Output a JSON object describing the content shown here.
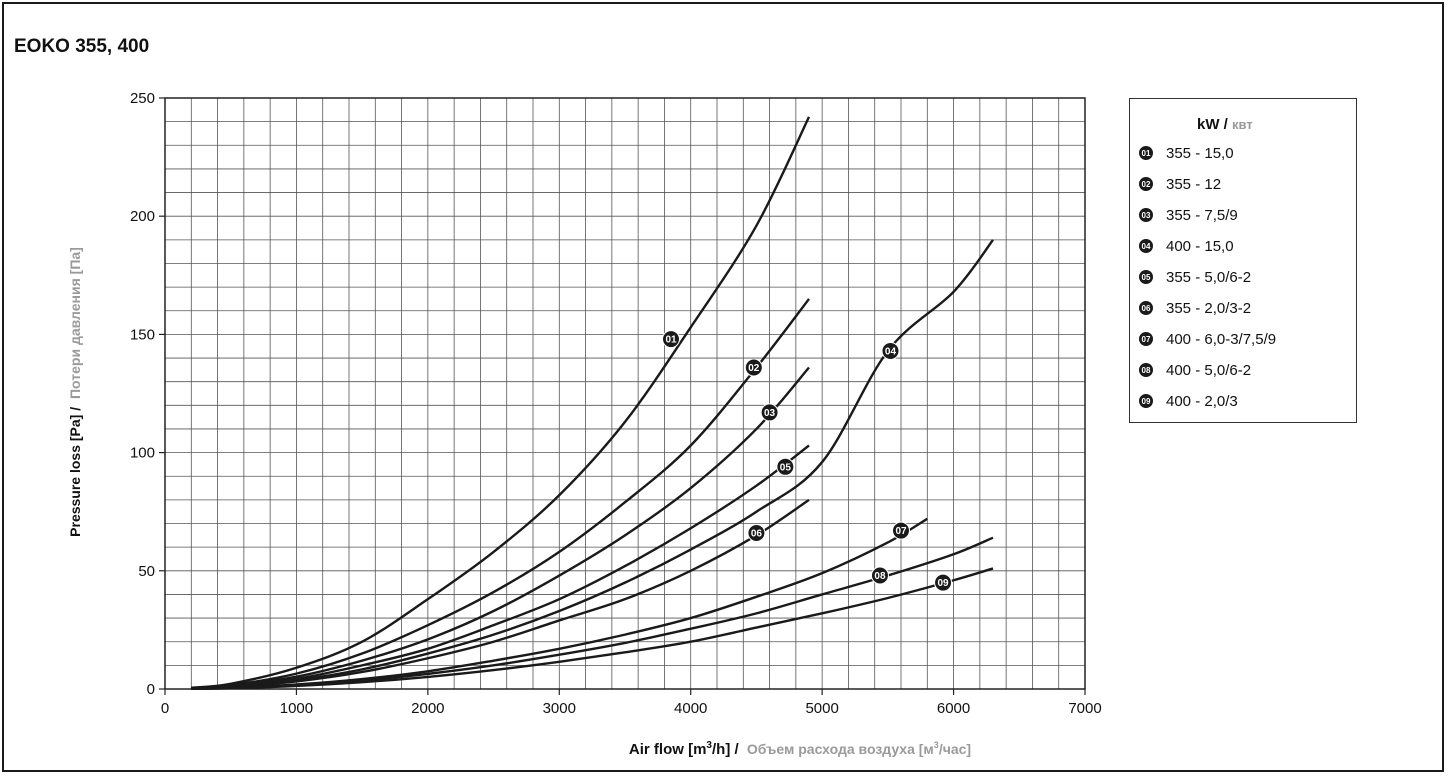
{
  "chart_data": {
    "type": "line",
    "title": "EOKO 355, 400",
    "xlabel": {
      "en_prefix": "Air flow [m",
      "en_sup": "3",
      "en_suffix": "/h] /",
      "ru_prefix": "Объем расхода воздуха [м",
      "ru_sup": "3",
      "ru_suffix": "/час]"
    },
    "ylabel": {
      "en": "Pressure loss [Pa] /",
      "ru": "Потери давления [Па]"
    },
    "xlim": [
      0,
      7000
    ],
    "ylim": [
      0,
      250
    ],
    "x_ticks": [
      0,
      1000,
      2000,
      3000,
      4000,
      5000,
      6000,
      7000
    ],
    "y_ticks": [
      0,
      50,
      100,
      150,
      200,
      250
    ],
    "grid": {
      "x_minor_step": 200,
      "y_minor_step": 10
    },
    "legend": {
      "placement": "right",
      "title_en": "kW",
      "title_sep": "/",
      "title_ru": "квт"
    },
    "series": [
      {
        "id": "01",
        "name": "355 - 15,0",
        "x": [
          200,
          500,
          1000,
          1500,
          2000,
          2500,
          3000,
          3500,
          4000,
          4500,
          4900
        ],
        "y": [
          0.5,
          2.2,
          9,
          20,
          38,
          58,
          82,
          113,
          153,
          196,
          242
        ],
        "label_at": [
          3850,
          148
        ]
      },
      {
        "id": "02",
        "name": "355 - 12",
        "x": [
          200,
          500,
          1000,
          1500,
          2000,
          2500,
          3000,
          3500,
          4000,
          4500,
          4900
        ],
        "y": [
          0.4,
          1.6,
          6.5,
          15,
          27,
          41,
          58,
          79,
          103,
          136,
          165
        ],
        "label_at": [
          4480,
          136
        ]
      },
      {
        "id": "03",
        "name": "355 - 7,5/9",
        "x": [
          200,
          500,
          1000,
          1500,
          2000,
          2500,
          3000,
          3500,
          4000,
          4500,
          4900
        ],
        "y": [
          0.3,
          1.3,
          5.2,
          12,
          21,
          33,
          48,
          65,
          85,
          110,
          136
        ],
        "label_at": [
          4600,
          117
        ]
      },
      {
        "id": "04",
        "name": "400 - 15,0",
        "x": [
          200,
          500,
          1000,
          1500,
          2000,
          2500,
          3000,
          3500,
          4000,
          4500,
          5000,
          5500,
          6000,
          6300
        ],
        "y": [
          0.2,
          0.9,
          3.7,
          8.3,
          15,
          23,
          33,
          45,
          59,
          75,
          96,
          143,
          168,
          190
        ],
        "label_at": [
          5520,
          143
        ]
      },
      {
        "id": "05",
        "name": "355 - 5,0/6-2",
        "x": [
          200,
          500,
          1000,
          1500,
          2000,
          2500,
          3000,
          3500,
          4000,
          4500,
          4900
        ],
        "y": [
          0.3,
          1.1,
          4.3,
          10,
          17,
          27,
          38,
          52,
          68,
          86,
          103
        ],
        "label_at": [
          4720,
          94
        ]
      },
      {
        "id": "06",
        "name": "355 - 2,0/3-2",
        "x": [
          200,
          500,
          1000,
          1500,
          2000,
          2500,
          3000,
          3500,
          4000,
          4500,
          4900
        ],
        "y": [
          0.2,
          0.8,
          3.2,
          7.2,
          13,
          20,
          29,
          38,
          50,
          65,
          80
        ],
        "label_at": [
          4500,
          66
        ]
      },
      {
        "id": "07",
        "name": "400 - 6,0-3/7,5/9",
        "x": [
          200,
          500,
          1000,
          1500,
          2000,
          2500,
          3000,
          3500,
          4000,
          4500,
          5000,
          5500,
          5800
        ],
        "y": [
          0.1,
          0.5,
          1.9,
          4.2,
          7.5,
          12,
          17,
          23,
          30,
          39,
          49,
          62,
          72
        ],
        "label_at": [
          5600,
          67
        ]
      },
      {
        "id": "08",
        "name": "400 - 5,0/6-2",
        "x": [
          200,
          500,
          1000,
          1500,
          2000,
          2500,
          3000,
          3500,
          4000,
          4500,
          5000,
          5500,
          6000,
          6300
        ],
        "y": [
          0.1,
          0.4,
          1.6,
          3.6,
          6.4,
          10,
          14.5,
          19.5,
          25.5,
          32,
          40,
          48,
          57,
          64
        ],
        "label_at": [
          5440,
          48
        ]
      },
      {
        "id": "09",
        "name": "400 - 2,0/3",
        "x": [
          200,
          500,
          1000,
          1500,
          2000,
          2500,
          3000,
          3500,
          4000,
          4500,
          5000,
          5500,
          6000,
          6300
        ],
        "y": [
          0.1,
          0.3,
          1.3,
          2.9,
          5.1,
          8,
          11.5,
          15.5,
          20,
          26,
          32,
          38.5,
          46,
          51
        ],
        "label_at": [
          5920,
          45
        ]
      }
    ]
  }
}
